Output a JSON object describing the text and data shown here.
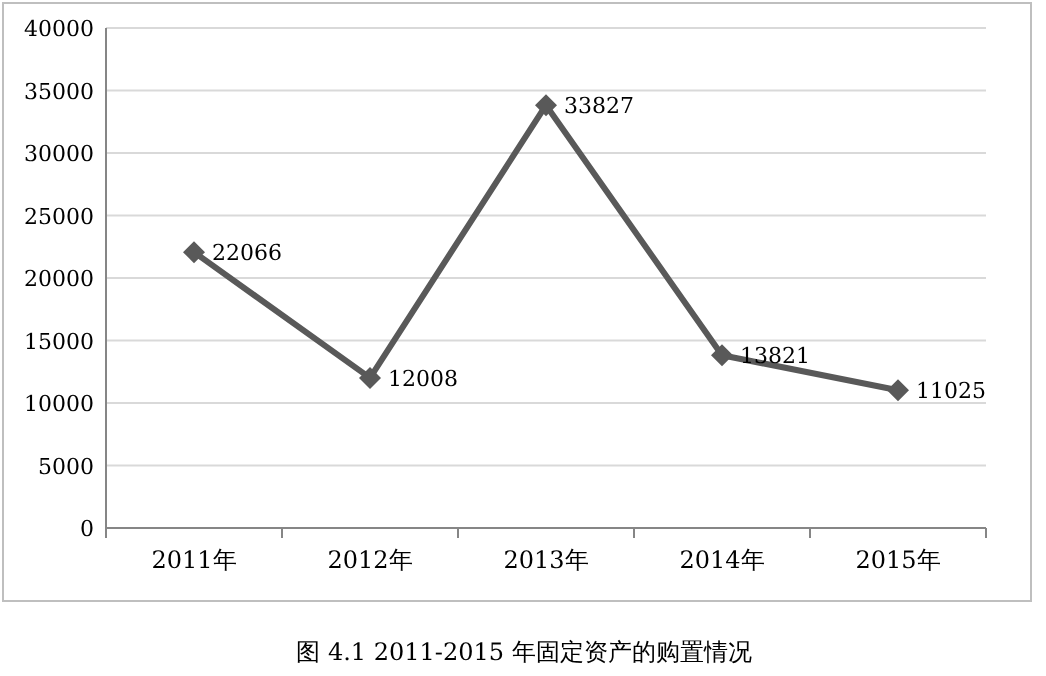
{
  "chart_data": {
    "type": "line",
    "categories": [
      "2011年",
      "2012年",
      "2013年",
      "2014年",
      "2015年"
    ],
    "values": [
      22066,
      12008,
      33827,
      13821,
      11025
    ],
    "color": "#595959",
    "ylim": [
      0,
      40000
    ],
    "yticks": [
      0,
      5000,
      10000,
      15000,
      20000,
      25000,
      30000,
      35000,
      40000
    ],
    "grid": "y",
    "marker": "diamond",
    "data_labels": true,
    "annotations": [
      "图 4.1  2011-2015 年固定资产的购置情况"
    ]
  }
}
